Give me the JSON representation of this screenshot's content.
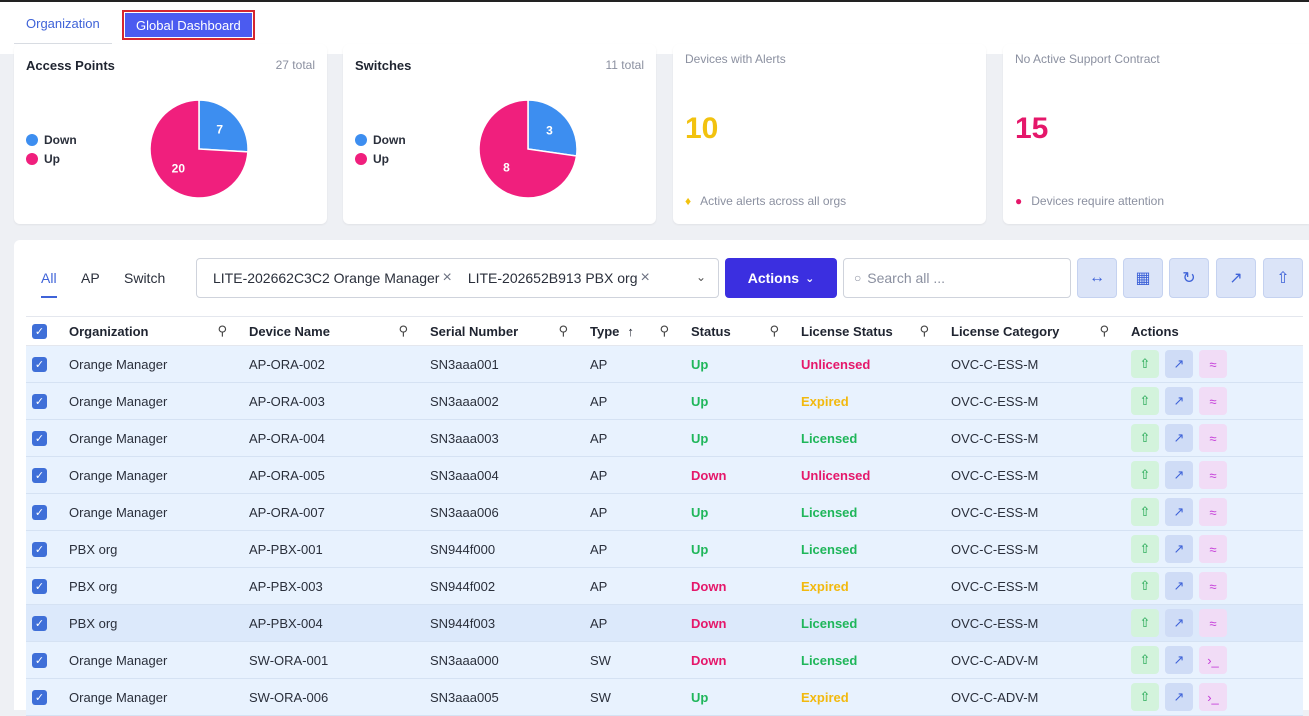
{
  "top_tabs": {
    "organization": "Organization",
    "global_dashboard": "Global Dashboard"
  },
  "cards": {
    "access_points": {
      "title": "Access Points",
      "total": "27 total",
      "legend": [
        {
          "label": "Down",
          "color": "#3d8ef0"
        },
        {
          "label": "Up",
          "color": "#f01f7d"
        }
      ],
      "down": 7,
      "up": 20
    },
    "switches": {
      "title": "Switches",
      "total": "11 total",
      "legend": [
        {
          "label": "Down",
          "color": "#3d8ef0"
        },
        {
          "label": "Up",
          "color": "#f01f7d"
        }
      ],
      "down": 3,
      "up": 8
    },
    "alerts": {
      "title": "Devices with Alerts",
      "value": "10",
      "footer": "Active alerts across all orgs",
      "color": "#f2c20f",
      "icon": "bell-icon"
    },
    "support": {
      "title": "No Active Support Contract",
      "value": "15",
      "footer": "Devices require attention",
      "color": "#e5176a",
      "icon": "shield-icon"
    }
  },
  "filter_tabs": [
    "All",
    "AP",
    "Switch"
  ],
  "org_select": {
    "chips": [
      "LITE-202662C3C2 Orange Manager",
      "LITE-202652B913 PBX org"
    ]
  },
  "actions_label": "Actions",
  "search": {
    "placeholder": "Search all ..."
  },
  "toolbar_icons": [
    "columns-resize-icon",
    "layout-icon",
    "refresh-icon",
    "open-external-icon",
    "upload-icon"
  ],
  "table": {
    "headers": {
      "organization": "Organization",
      "device_name": "Device Name",
      "serial_number": "Serial Number",
      "type": "Type",
      "status": "Status",
      "license_status": "License Status",
      "license_category": "License Category",
      "actions": "Actions"
    },
    "rows": [
      {
        "org": "Orange Manager",
        "device": "AP-ORA-002",
        "serial": "SN3aaa001",
        "type": "AP",
        "status": "Up",
        "license": "Unlicensed",
        "category": "OVC-C-ESS-M"
      },
      {
        "org": "Orange Manager",
        "device": "AP-ORA-003",
        "serial": "SN3aaa002",
        "type": "AP",
        "status": "Up",
        "license": "Expired",
        "category": "OVC-C-ESS-M"
      },
      {
        "org": "Orange Manager",
        "device": "AP-ORA-004",
        "serial": "SN3aaa003",
        "type": "AP",
        "status": "Up",
        "license": "Licensed",
        "category": "OVC-C-ESS-M"
      },
      {
        "org": "Orange Manager",
        "device": "AP-ORA-005",
        "serial": "SN3aaa004",
        "type": "AP",
        "status": "Down",
        "license": "Unlicensed",
        "category": "OVC-C-ESS-M"
      },
      {
        "org": "Orange Manager",
        "device": "AP-ORA-007",
        "serial": "SN3aaa006",
        "type": "AP",
        "status": "Up",
        "license": "Licensed",
        "category": "OVC-C-ESS-M"
      },
      {
        "org": "PBX org",
        "device": "AP-PBX-001",
        "serial": "SN944f000",
        "type": "AP",
        "status": "Up",
        "license": "Licensed",
        "category": "OVC-C-ESS-M"
      },
      {
        "org": "PBX org",
        "device": "AP-PBX-003",
        "serial": "SN944f002",
        "type": "AP",
        "status": "Down",
        "license": "Expired",
        "category": "OVC-C-ESS-M"
      },
      {
        "org": "PBX org",
        "device": "AP-PBX-004",
        "serial": "SN944f003",
        "type": "AP",
        "status": "Down",
        "license": "Licensed",
        "category": "OVC-C-ESS-M"
      },
      {
        "org": "Orange Manager",
        "device": "SW-ORA-001",
        "serial": "SN3aaa000",
        "type": "SW",
        "status": "Down",
        "license": "Licensed",
        "category": "OVC-C-ADV-M"
      },
      {
        "org": "Orange Manager",
        "device": "SW-ORA-006",
        "serial": "SN3aaa005",
        "type": "SW",
        "status": "Up",
        "license": "Expired",
        "category": "OVC-C-ADV-M"
      }
    ]
  }
}
